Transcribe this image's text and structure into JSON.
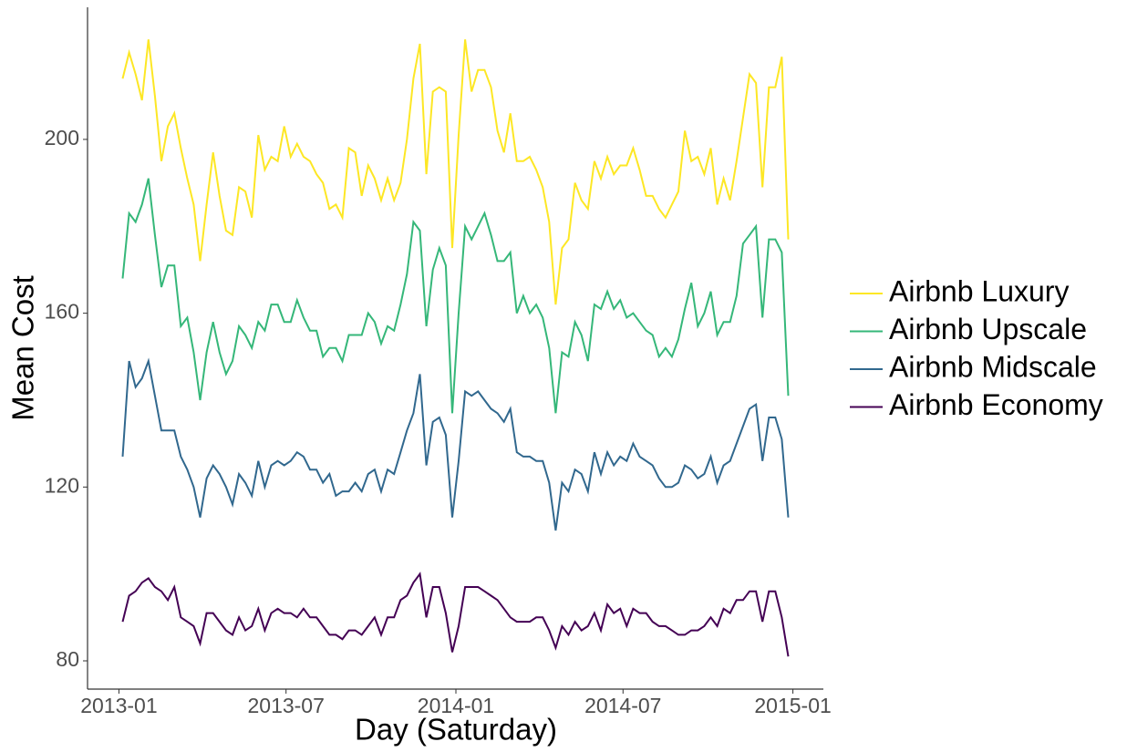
{
  "chart_data": {
    "type": "line",
    "x_label": "Day (Saturday)",
    "y_label": "Mean Cost",
    "x": [
      4,
      11,
      18,
      25,
      32,
      39,
      46,
      53,
      60,
      67,
      74,
      81,
      88,
      95,
      102,
      109,
      116,
      123,
      130,
      137,
      144,
      151,
      158,
      165,
      172,
      179,
      186,
      193,
      200,
      207,
      214,
      221,
      228,
      235,
      242,
      249,
      256,
      263,
      270,
      277,
      284,
      291,
      298,
      305,
      312,
      319,
      326,
      333,
      340,
      347,
      354,
      361,
      368,
      375,
      382,
      389,
      396,
      403,
      410,
      417,
      424,
      431,
      438,
      445,
      452,
      459,
      466,
      473,
      480,
      487,
      494,
      501,
      508,
      515,
      522,
      529,
      536,
      543,
      550,
      557,
      564,
      571,
      578,
      585,
      592,
      599,
      606,
      613,
      620,
      627,
      634,
      641,
      648,
      655,
      662,
      669,
      676,
      683,
      690,
      697,
      704,
      711,
      718,
      725
    ],
    "series": [
      {
        "name": "Airbnb Luxury",
        "color": "#fde725",
        "values": [
          214,
          220,
          215,
          209,
          223,
          210,
          195,
          203,
          206,
          198,
          191,
          185,
          172,
          185,
          197,
          187,
          179,
          178,
          189,
          188,
          182,
          201,
          193,
          196,
          195,
          203,
          196,
          199,
          196,
          195,
          192,
          190,
          184,
          185,
          182,
          198,
          197,
          187,
          194,
          191,
          186,
          191,
          186,
          190,
          200,
          214,
          222,
          192,
          211,
          212,
          211,
          175,
          201,
          223,
          211,
          216,
          216,
          212,
          202,
          197,
          206,
          195,
          195,
          196,
          193,
          189,
          181,
          162,
          175,
          177,
          190,
          186,
          184,
          195,
          191,
          196,
          192,
          194,
          194,
          198,
          193,
          187,
          187,
          184,
          182,
          185,
          188,
          202,
          195,
          196,
          192,
          198,
          185,
          191,
          186,
          195,
          205,
          215,
          213,
          189,
          212,
          212,
          219,
          177
        ]
      },
      {
        "name": "Airbnb Upscale",
        "color": "#35b779",
        "values": [
          168,
          183,
          181,
          185,
          191,
          178,
          166,
          171,
          171,
          157,
          159,
          151,
          140,
          151,
          158,
          151,
          146,
          149,
          157,
          155,
          152,
          158,
          156,
          162,
          162,
          158,
          158,
          163,
          159,
          156,
          156,
          150,
          152,
          152,
          149,
          155,
          155,
          155,
          160,
          158,
          153,
          157,
          156,
          162,
          169,
          181,
          179,
          157,
          170,
          175,
          171,
          137,
          160,
          180,
          177,
          180,
          183,
          178,
          172,
          172,
          174,
          160,
          164,
          160,
          162,
          159,
          152,
          137,
          151,
          150,
          158,
          155,
          149,
          162,
          161,
          165,
          161,
          163,
          159,
          160,
          158,
          156,
          155,
          150,
          152,
          150,
          154,
          161,
          167,
          157,
          160,
          165,
          155,
          158,
          158,
          164,
          176,
          178,
          180,
          159,
          177,
          177,
          174,
          141
        ]
      },
      {
        "name": "Airbnb Midscale",
        "color": "#31688e",
        "values": [
          127,
          149,
          143,
          145,
          149,
          141,
          133,
          133,
          133,
          127,
          124,
          120,
          113,
          122,
          125,
          123,
          120,
          116,
          123,
          121,
          118,
          126,
          120,
          125,
          126,
          125,
          126,
          128,
          127,
          124,
          124,
          121,
          123,
          118,
          119,
          119,
          121,
          119,
          123,
          124,
          119,
          124,
          123,
          128,
          133,
          137,
          146,
          125,
          135,
          136,
          132,
          113,
          126,
          142,
          141,
          142,
          140,
          138,
          137,
          135,
          138,
          128,
          127,
          127,
          126,
          126,
          121,
          110,
          121,
          119,
          124,
          123,
          119,
          128,
          123,
          128,
          125,
          127,
          126,
          130,
          127,
          126,
          125,
          122,
          120,
          120,
          121,
          125,
          124,
          122,
          123,
          127,
          121,
          125,
          126,
          130,
          134,
          138,
          139,
          126,
          136,
          136,
          131,
          113
        ]
      },
      {
        "name": "Airbnb Economy",
        "color": "#440154",
        "values": [
          89,
          95,
          96,
          98,
          99,
          97,
          96,
          94,
          97,
          90,
          89,
          88,
          84,
          91,
          91,
          89,
          87,
          86,
          90,
          87,
          88,
          92,
          87,
          91,
          92,
          91,
          91,
          90,
          92,
          90,
          90,
          88,
          86,
          86,
          85,
          87,
          87,
          86,
          88,
          90,
          86,
          90,
          90,
          94,
          95,
          98,
          100,
          90,
          97,
          97,
          91,
          82,
          88,
          97,
          97,
          97,
          96,
          95,
          94,
          92,
          90,
          89,
          89,
          89,
          90,
          90,
          87,
          83,
          88,
          86,
          89,
          87,
          88,
          91,
          87,
          93,
          91,
          92,
          88,
          92,
          91,
          91,
          89,
          88,
          88,
          87,
          86,
          86,
          87,
          87,
          88,
          90,
          88,
          92,
          91,
          94,
          94,
          96,
          96,
          89,
          96,
          96,
          90,
          81
        ]
      }
    ],
    "xlim": [
      -34,
      763
    ],
    "xticks": [
      {
        "value": 0,
        "label": "2013-01"
      },
      {
        "value": 181,
        "label": "2013-07"
      },
      {
        "value": 365,
        "label": "2014-01"
      },
      {
        "value": 546,
        "label": "2014-07"
      },
      {
        "value": 730,
        "label": "2015-01"
      }
    ],
    "ylim": [
      73.5,
      230.4
    ],
    "yticks": [
      80,
      120,
      160,
      200
    ],
    "grid": false,
    "legend": "right"
  }
}
